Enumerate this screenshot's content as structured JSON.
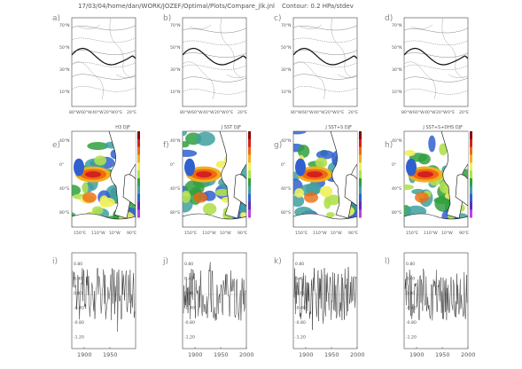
{
  "header": {
    "path_text": "17/03/04/home/dan/WORK/JOZEF/Optimal/Plots/Compare_jlk.jnl",
    "contour_text": "Contour: 0.2 HPa/stdev"
  },
  "row1": {
    "panels": [
      {
        "label": "a)",
        "title": ""
      },
      {
        "label": "b)",
        "title": ""
      },
      {
        "label": "c)",
        "title": ""
      },
      {
        "label": "d)",
        "title": ""
      }
    ],
    "lat_ticks": [
      "70°N",
      "50°N",
      "30°N",
      "10°N"
    ],
    "lon_ticks": [
      "80°W",
      "60°W",
      "40°W",
      "20°W",
      "0°E",
      "20°E"
    ]
  },
  "row2": {
    "panels": [
      {
        "label": "e)",
        "title": "H3 DJF"
      },
      {
        "label": "f)",
        "title": "J SST DJF"
      },
      {
        "label": "g)",
        "title": "J SST+S DJF"
      },
      {
        "label": "h)",
        "title": "J SST+S+DHS DJF"
      }
    ],
    "lat_ticks": [
      "40°N",
      "0°",
      "40°S",
      "80°S"
    ],
    "lon_ticks": [
      "150°E",
      "110°W",
      "10°W",
      "90°E"
    ],
    "colors": [
      "#8b0000",
      "#d42020",
      "#ee6a10",
      "#f0b020",
      "#f0f060",
      "#b0e050",
      "#30a040",
      "#40a0a0",
      "#3060d0",
      "#6030b0",
      "#c040e0"
    ]
  },
  "row3": {
    "panels": [
      {
        "label": "i)",
        "x_ticks": [
          "1900",
          "1950"
        ]
      },
      {
        "label": "j)",
        "x_ticks": [
          "1900",
          "1950",
          "2000"
        ]
      },
      {
        "label": "k)",
        "x_ticks": [
          "1900",
          "1950",
          "2000"
        ]
      },
      {
        "label": "l)",
        "x_ticks": [
          "1900",
          "1950",
          "2000"
        ]
      }
    ],
    "y_ticks": [
      "0.80",
      "0.40",
      "0.00",
      "-0.40",
      "-0.80",
      "-1.20"
    ]
  }
}
